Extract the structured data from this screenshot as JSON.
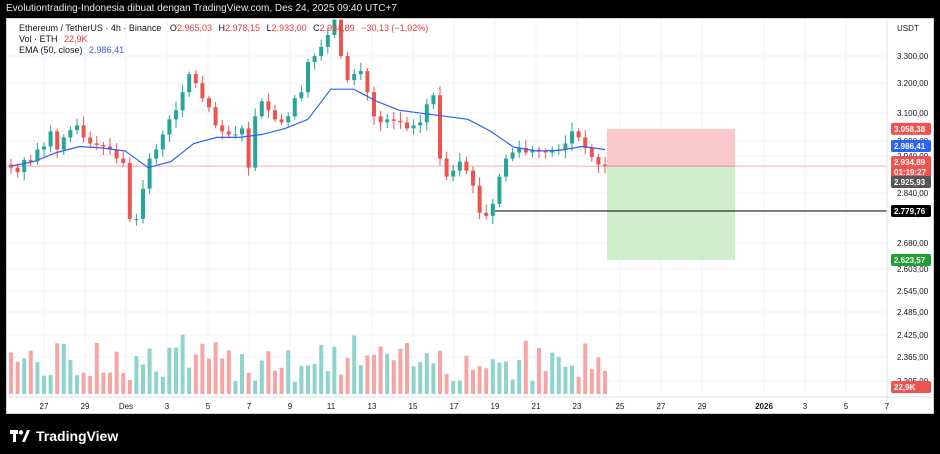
{
  "header": {
    "caption": "Evolutiontrading-Indonesia dibuat dengan TradingView.com, Des 24, 2025 09:40 UTC+7"
  },
  "legend": {
    "symbol": "Ethereum / TetherUS · 4h · Binance",
    "ohlc": {
      "o_label": "O",
      "o": "2.965,03",
      "h_label": "H",
      "h": "2.978,15",
      "l_label": "L",
      "l": "2.933,00",
      "c_label": "C",
      "c": "2.934,89",
      "change": "−30,13 (−1,02%)"
    },
    "vol_label": "Vol · ETH",
    "vol_value": "22,9K",
    "ema_label": "EMA (50, close)",
    "ema_value": "2.986,41"
  },
  "branding": {
    "logo_text": "TradingView"
  },
  "colors": {
    "up": "#26a69a",
    "down": "#ef5350",
    "ema": "#2962ff",
    "stop_zone": "#f9c9c9",
    "target_zone": "#cfeccb"
  },
  "chart_data": {
    "type": "candlestick",
    "currency": "USDT",
    "x_tick_labels": [
      "27",
      "29",
      "Des",
      "3",
      "5",
      "7",
      "9",
      "11",
      "13",
      "15",
      "17",
      "19",
      "21",
      "23",
      "25",
      "27",
      "29",
      "2026",
      "3",
      "5",
      "7"
    ],
    "y_tick_labels": [
      "3.300,00",
      "3.200,00",
      "3.100,00",
      "3.000,00",
      "2.940,00",
      "2.840,00",
      "2.760,00",
      "2.680,00",
      "2.603,00",
      "2.545,00",
      "2.485,00",
      "2.425,00",
      "2.365,00",
      "2.305,00"
    ],
    "price_badges": {
      "stop": "3.058,38",
      "ema": "2.986,41",
      "last": "2.934,89",
      "countdown": "01:19:27",
      "open": "2.925,93",
      "horizontal_line": "2.779,76",
      "target": "2.623,57",
      "volume": "22,9K"
    },
    "price_path_close": [
      2930,
      2915,
      2955,
      2950,
      2990,
      3000,
      3050,
      2990,
      3030,
      3055,
      3070,
      3030,
      3010,
      3005,
      3000,
      2990,
      2960,
      2945,
      2760,
      2760,
      2860,
      2960,
      2990,
      3040,
      3090,
      3120,
      3180,
      3240,
      3210,
      3160,
      3130,
      3070,
      3050,
      3040,
      3040,
      3060,
      2930,
      3100,
      3150,
      3120,
      3090,
      3080,
      3100,
      3160,
      3180,
      3280,
      3300,
      3330,
      3370,
      3420,
      3300,
      3220,
      3240,
      3250,
      3180,
      3100,
      3080,
      3090,
      3085,
      3080,
      3060,
      3070,
      3080,
      3140,
      3170,
      2960,
      2900,
      2920,
      2950,
      2920,
      2870,
      2780,
      2770,
      2810,
      2900,
      2960,
      2980,
      2995,
      2980,
      2990,
      2985,
      2980,
      2985,
      2990,
      3010,
      3050,
      3030,
      2995,
      2965,
      2940,
      2935
    ],
    "ema50_anchor_values": [
      2935,
      2950,
      2980,
      3000,
      2995,
      2985,
      2930,
      2950,
      3010,
      3030,
      3030,
      3040,
      3060,
      3090,
      3190,
      3190,
      3150,
      3120,
      3110,
      3100,
      3090,
      3050,
      2998,
      2985,
      2987,
      3000,
      2990
    ],
    "trade_zone": {
      "entry": 2934.89,
      "stop": 3058.38,
      "target": 2623.57
    },
    "volume_note": "volume histogram below price, last bar 22,9K"
  }
}
